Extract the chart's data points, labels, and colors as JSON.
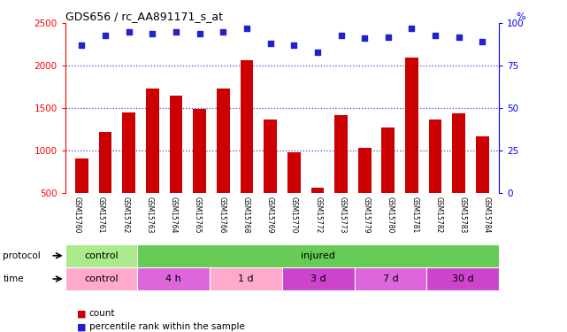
{
  "title": "GDS656 / rc_AA891171_s_at",
  "samples": [
    "GSM15760",
    "GSM15761",
    "GSM15762",
    "GSM15763",
    "GSM15764",
    "GSM15765",
    "GSM15766",
    "GSM15768",
    "GSM15769",
    "GSM15770",
    "GSM15772",
    "GSM15773",
    "GSM15779",
    "GSM15780",
    "GSM15781",
    "GSM15782",
    "GSM15783",
    "GSM15784"
  ],
  "counts": [
    900,
    1220,
    1450,
    1730,
    1640,
    1490,
    1730,
    2060,
    1360,
    980,
    560,
    1420,
    1030,
    1270,
    2100,
    1360,
    1440,
    1160
  ],
  "percentiles": [
    87,
    93,
    95,
    94,
    95,
    94,
    95,
    97,
    88,
    87,
    83,
    93,
    91,
    92,
    97,
    93,
    92,
    89
  ],
  "bar_color": "#cc0000",
  "dot_color": "#2222cc",
  "ylim_left": [
    500,
    2500
  ],
  "ylim_right": [
    0,
    100
  ],
  "yticks_left": [
    500,
    1000,
    1500,
    2000,
    2500
  ],
  "yticks_right": [
    0,
    25,
    50,
    75,
    100
  ],
  "grid_values": [
    1000,
    1500,
    2000
  ],
  "protocol_groups": [
    {
      "label": "control",
      "start": 0,
      "end": 3,
      "color": "#aaea8a"
    },
    {
      "label": "injured",
      "start": 3,
      "end": 18,
      "color": "#66cc55"
    }
  ],
  "time_groups": [
    {
      "label": "control",
      "start": 0,
      "end": 3,
      "color": "#ffaacc"
    },
    {
      "label": "4 h",
      "start": 3,
      "end": 6,
      "color": "#dd66dd"
    },
    {
      "label": "1 d",
      "start": 6,
      "end": 9,
      "color": "#ffaacc"
    },
    {
      "label": "3 d",
      "start": 9,
      "end": 12,
      "color": "#cc44cc"
    },
    {
      "label": "7 d",
      "start": 12,
      "end": 15,
      "color": "#dd66dd"
    },
    {
      "label": "30 d",
      "start": 15,
      "end": 18,
      "color": "#cc44cc"
    }
  ],
  "legend_items": [
    {
      "label": "count",
      "color": "#cc0000"
    },
    {
      "label": "percentile rank within the sample",
      "color": "#2222cc"
    }
  ],
  "bg_color": "#ffffff",
  "tick_area_color": "#cccccc"
}
